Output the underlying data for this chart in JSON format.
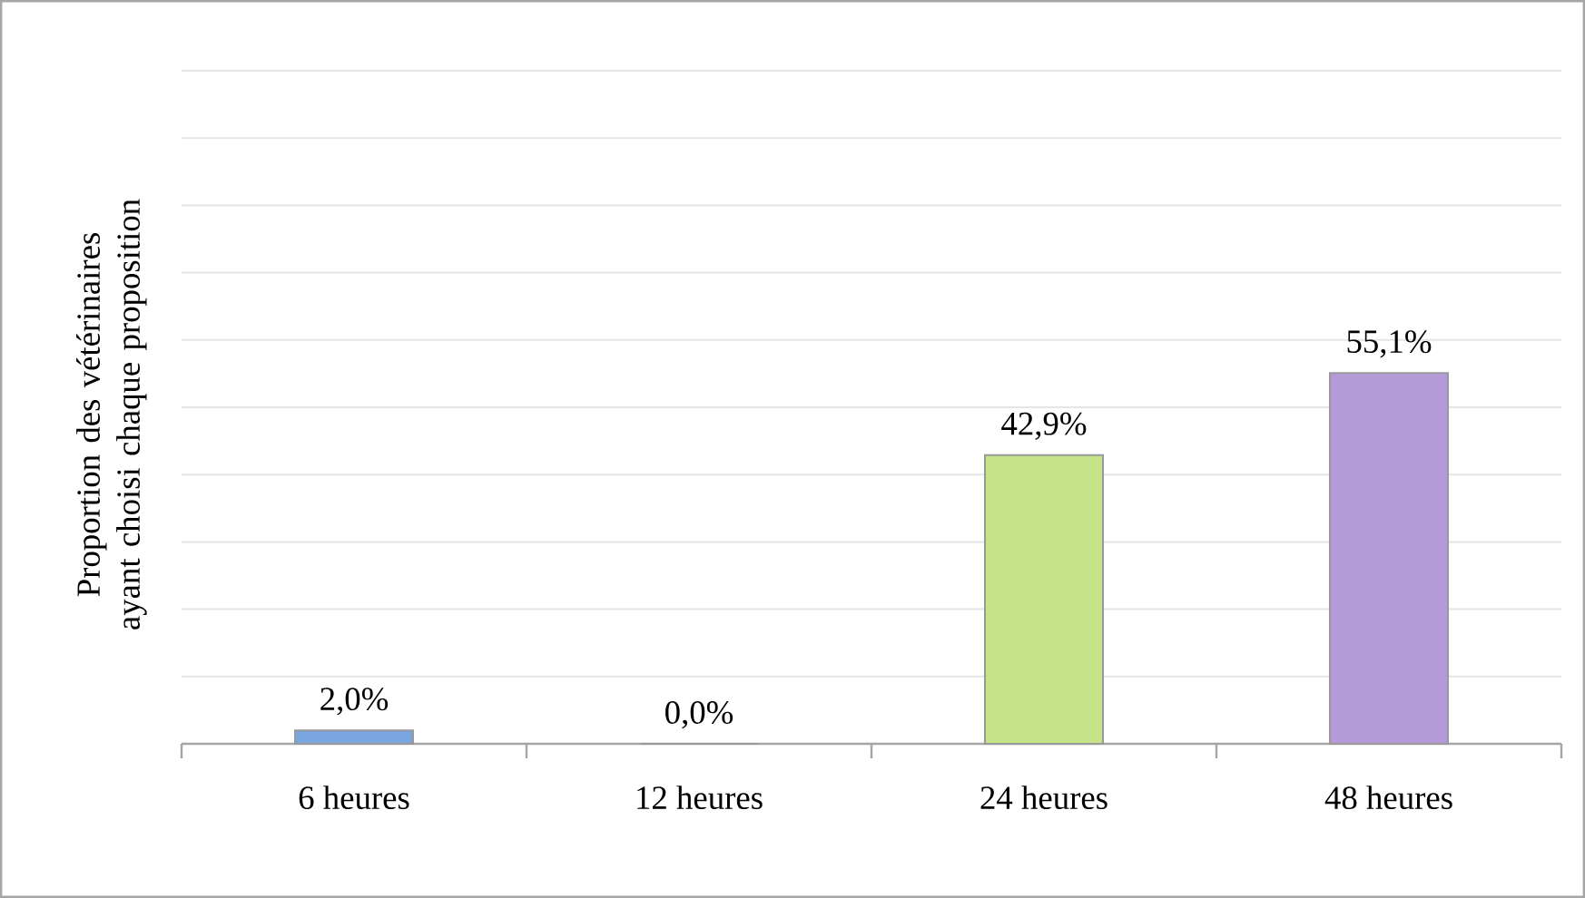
{
  "chart_data": {
    "type": "bar",
    "ylabel": "Proportion des vétérinaires ayant choisi chaque proposition",
    "categories": [
      "6 heures",
      "12 heures",
      "24 heures",
      "48 heures"
    ],
    "values": [
      2.0,
      0.0,
      42.9,
      55.1
    ],
    "value_labels": [
      "2,0%",
      "0,0%",
      "42,9%",
      "55,1%"
    ],
    "colors": [
      "#7aa6e0",
      "#8fb4e3",
      "#c6e38a",
      "#b39ad8"
    ],
    "ylim": [
      0,
      100
    ],
    "yticks": [
      {
        "value": 0,
        "label": null
      },
      {
        "value": 10,
        "label": null
      },
      {
        "value": 20,
        "label": null
      },
      {
        "value": 30,
        "label": null
      },
      {
        "value": 40,
        "label": null
      },
      {
        "value": 50,
        "label": null
      },
      {
        "value": 60,
        "label": null
      },
      {
        "value": 70,
        "label": null
      },
      {
        "value": 80,
        "label": null
      },
      {
        "value": 90,
        "label": null
      },
      {
        "value": 100,
        "label": null
      }
    ],
    "grid": "y"
  }
}
